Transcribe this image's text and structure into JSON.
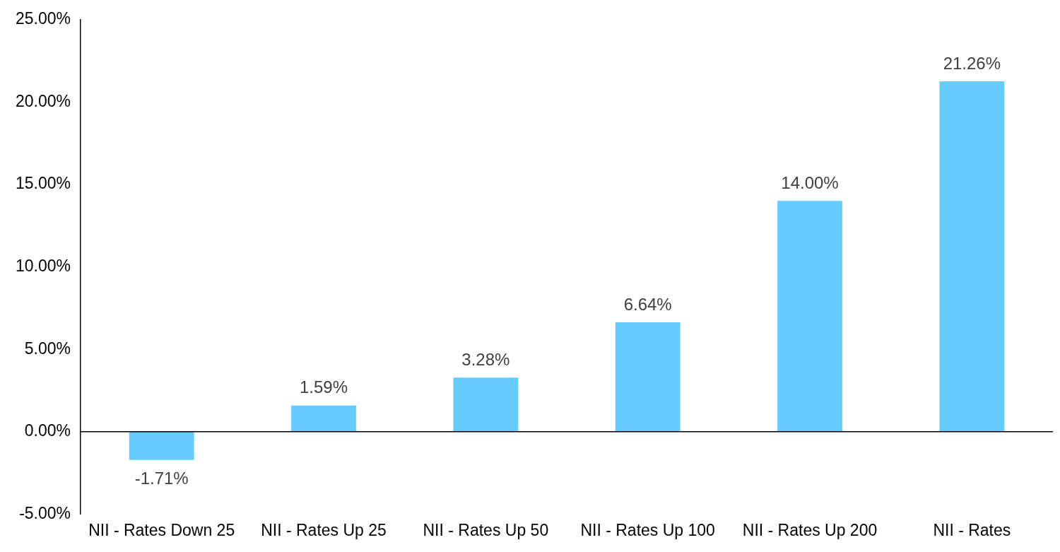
{
  "chart_data": {
    "type": "bar",
    "categories": [
      "NII - Rates Down 25",
      "NII - Rates Up 25",
      "NII - Rates Up 50",
      "NII - Rates Up 100",
      "NII - Rates Up 200",
      "NII - Rates"
    ],
    "values": [
      -1.71,
      1.59,
      3.28,
      6.64,
      14.0,
      21.26
    ],
    "value_labels": [
      "-1.71%",
      "1.59%",
      "3.28%",
      "6.64%",
      "14.00%",
      "21.26%"
    ],
    "color": "#66ccff",
    "ylim": [
      -5,
      25
    ],
    "yticks": [
      {
        "value": -5,
        "label": "-5.00%"
      },
      {
        "value": 0,
        "label": "0.00%"
      },
      {
        "value": 5,
        "label": "5.00%"
      },
      {
        "value": 10,
        "label": "10.00%"
      },
      {
        "value": 15,
        "label": "15.00%"
      },
      {
        "value": 20,
        "label": "20.00%"
      },
      {
        "value": 25,
        "label": "25.00%"
      }
    ],
    "ref_lines": [
      {
        "axis": "y",
        "value": 0,
        "color": "#000000"
      }
    ],
    "legend": false
  }
}
